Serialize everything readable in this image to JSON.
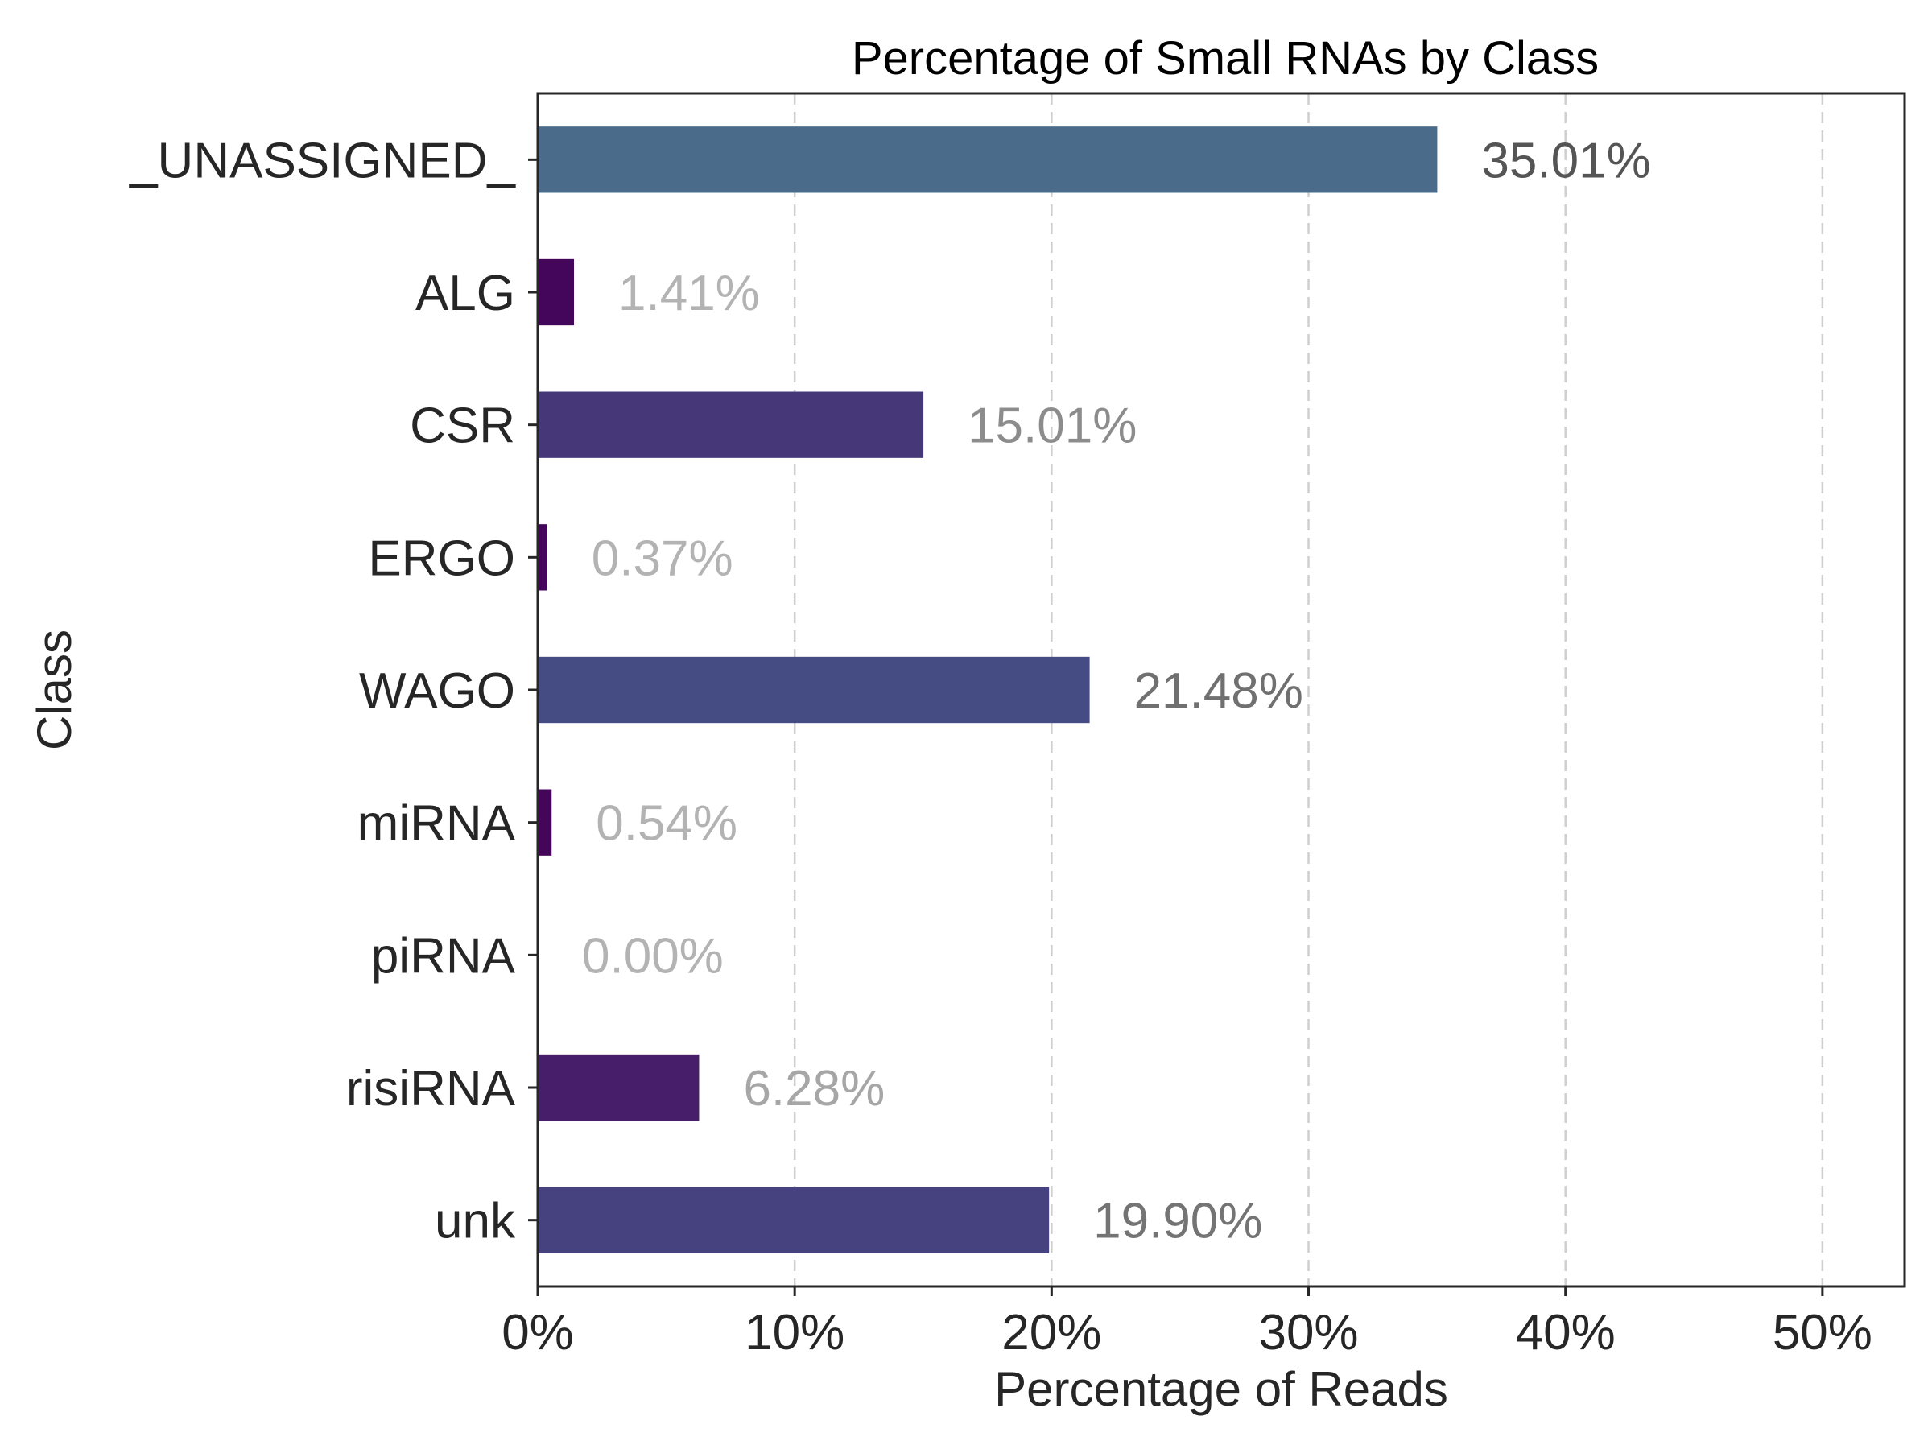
{
  "chart_data": {
    "type": "bar",
    "orientation": "horizontal",
    "title": "Percentage of Small RNAs by Class",
    "xlabel": "Percentage of Reads",
    "ylabel": "Class",
    "xlim": [
      0,
      53.2
    ],
    "xticks": [
      0,
      10,
      20,
      30,
      40,
      50
    ],
    "xtick_labels": [
      "0%",
      "10%",
      "20%",
      "30%",
      "40%",
      "50%"
    ],
    "grid": "x-dashed",
    "categories": [
      "_UNASSIGNED_",
      "ALG",
      "CSR",
      "ERGO",
      "WAGO",
      "miRNA",
      "piRNA",
      "risiRNA",
      "unk"
    ],
    "values": [
      35.01,
      1.41,
      15.01,
      0.37,
      21.48,
      0.54,
      0.0,
      6.28,
      19.9
    ],
    "value_labels": [
      "35.01%",
      "1.41%",
      "15.01%",
      "0.37%",
      "21.48%",
      "0.54%",
      "0.00%",
      "6.28%",
      "19.90%"
    ],
    "bar_colors": [
      "#4a6b8a",
      "#44065a",
      "#463878",
      "#44065a",
      "#454b83",
      "#44065a",
      "#440154",
      "#461e6a",
      "#464280"
    ],
    "label_colors": [
      "#555555",
      "#b3b3b3",
      "#8c8c8c",
      "#b3b3b3",
      "#707070",
      "#b3b3b3",
      "#b3b3b3",
      "#a6a6a6",
      "#747474"
    ]
  }
}
